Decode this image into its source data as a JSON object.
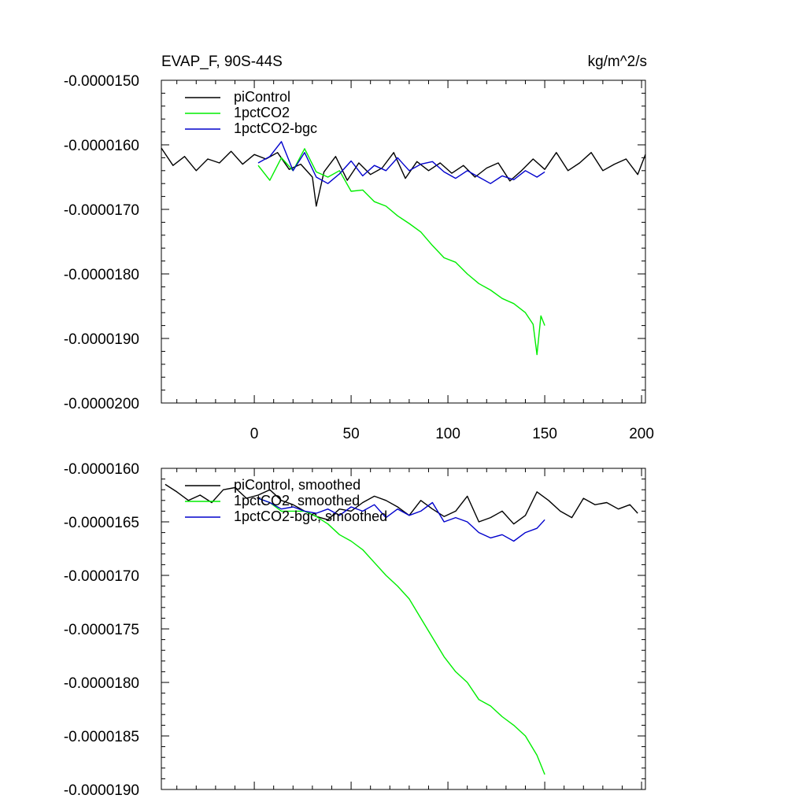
{
  "chart_data": [
    {
      "type": "line",
      "title_left": "EVAP_F, 90S-44S",
      "title_right": "kg/m^2/s",
      "xlabel": "",
      "ylabel": "",
      "xlim": [
        -48,
        202
      ],
      "ylim": [
        -2e-05,
        -1.5e-05
      ],
      "xticks": [
        0,
        50,
        100,
        150,
        200
      ],
      "xtick_labels": [
        "0",
        "50",
        "100",
        "150",
        "200"
      ],
      "yticks": [
        -1.5e-05,
        -1.6e-05,
        -1.7e-05,
        -1.8e-05,
        -1.9e-05,
        -2e-05
      ],
      "ytick_labels": [
        "-0.0000150",
        "-0.0000160",
        "-0.0000170",
        "-0.0000180",
        "-0.0000190",
        "-0.0000200"
      ],
      "legend": "top-left",
      "series": [
        {
          "name": "piControl",
          "color": "#000000",
          "x": [
            -48,
            -42,
            -36,
            -30,
            -24,
            -18,
            -12,
            -6,
            0,
            6,
            12,
            18,
            24,
            30,
            32,
            36,
            42,
            48,
            54,
            60,
            66,
            72,
            78,
            84,
            90,
            96,
            102,
            108,
            114,
            120,
            126,
            132,
            138,
            144,
            150,
            156,
            162,
            168,
            174,
            180,
            186,
            192,
            198,
            202
          ],
          "values": [
            -1.605e-05,
            -1.632e-05,
            -1.618e-05,
            -1.64e-05,
            -1.622e-05,
            -1.628e-05,
            -1.61e-05,
            -1.63e-05,
            -1.615e-05,
            -1.622e-05,
            -1.612e-05,
            -1.638e-05,
            -1.63e-05,
            -1.65e-05,
            -1.695e-05,
            -1.642e-05,
            -1.618e-05,
            -1.655e-05,
            -1.628e-05,
            -1.646e-05,
            -1.636e-05,
            -1.612e-05,
            -1.652e-05,
            -1.626e-05,
            -1.64e-05,
            -1.628e-05,
            -1.644e-05,
            -1.632e-05,
            -1.65e-05,
            -1.636e-05,
            -1.628e-05,
            -1.656e-05,
            -1.64e-05,
            -1.622e-05,
            -1.638e-05,
            -1.612e-05,
            -1.64e-05,
            -1.628e-05,
            -1.612e-05,
            -1.64e-05,
            -1.63e-05,
            -1.622e-05,
            -1.646e-05,
            -1.615e-05
          ]
        },
        {
          "name": "1pctCO2",
          "color": "#00ee00",
          "x": [
            2,
            8,
            14,
            20,
            26,
            32,
            38,
            44,
            50,
            56,
            62,
            68,
            74,
            80,
            86,
            92,
            98,
            104,
            110,
            116,
            122,
            128,
            134,
            140,
            144,
            146,
            148,
            150
          ],
          "values": [
            -1.632e-05,
            -1.655e-05,
            -1.62e-05,
            -1.64e-05,
            -1.606e-05,
            -1.642e-05,
            -1.65e-05,
            -1.64e-05,
            -1.672e-05,
            -1.67e-05,
            -1.688e-05,
            -1.695e-05,
            -1.71e-05,
            -1.722e-05,
            -1.735e-05,
            -1.756e-05,
            -1.775e-05,
            -1.782e-05,
            -1.8e-05,
            -1.815e-05,
            -1.825e-05,
            -1.838e-05,
            -1.846e-05,
            -1.86e-05,
            -1.878e-05,
            -1.925e-05,
            -1.865e-05,
            -1.88e-05
          ]
        },
        {
          "name": "1pctCO2-bgc",
          "color": "#0000cc",
          "x": [
            2,
            8,
            14,
            20,
            26,
            32,
            38,
            44,
            50,
            56,
            62,
            68,
            74,
            80,
            86,
            92,
            98,
            104,
            110,
            116,
            122,
            128,
            134,
            140,
            146,
            150
          ],
          "values": [
            -1.628e-05,
            -1.618e-05,
            -1.595e-05,
            -1.64e-05,
            -1.612e-05,
            -1.65e-05,
            -1.66e-05,
            -1.645e-05,
            -1.625e-05,
            -1.648e-05,
            -1.632e-05,
            -1.64e-05,
            -1.62e-05,
            -1.64e-05,
            -1.63e-05,
            -1.626e-05,
            -1.642e-05,
            -1.652e-05,
            -1.64e-05,
            -1.65e-05,
            -1.66e-05,
            -1.648e-05,
            -1.654e-05,
            -1.64e-05,
            -1.65e-05,
            -1.642e-05
          ]
        }
      ]
    },
    {
      "type": "line",
      "title_left": "",
      "title_right": "",
      "xlabel": "",
      "ylabel": "",
      "xlim": [
        -48,
        202
      ],
      "ylim": [
        -1.9e-05,
        -1.6e-05
      ],
      "xticks": [
        0,
        50,
        100,
        150,
        200
      ],
      "xtick_labels": [],
      "yticks": [
        -1.6e-05,
        -1.65e-05,
        -1.7e-05,
        -1.75e-05,
        -1.8e-05,
        -1.85e-05,
        -1.9e-05
      ],
      "ytick_labels": [
        "-0.0000160",
        "-0.0000165",
        "-0.0000170",
        "-0.0000175",
        "-0.0000180",
        "-0.0000185",
        "-0.0000190"
      ],
      "legend": "top-left",
      "series": [
        {
          "name": "piControl, smoothed",
          "color": "#000000",
          "x": [
            -46,
            -40,
            -34,
            -28,
            -22,
            -16,
            -10,
            -4,
            2,
            8,
            14,
            20,
            26,
            32,
            38,
            44,
            50,
            56,
            62,
            68,
            74,
            80,
            86,
            92,
            98,
            104,
            110,
            116,
            122,
            128,
            134,
            140,
            146,
            152,
            158,
            164,
            170,
            176,
            182,
            188,
            194,
            198
          ],
          "values": [
            -1.615e-05,
            -1.622e-05,
            -1.63e-05,
            -1.625e-05,
            -1.632e-05,
            -1.62e-05,
            -1.618e-05,
            -1.628e-05,
            -1.625e-05,
            -1.62e-05,
            -1.63e-05,
            -1.634e-05,
            -1.64e-05,
            -1.645e-05,
            -1.648e-05,
            -1.638e-05,
            -1.64e-05,
            -1.632e-05,
            -1.626e-05,
            -1.63e-05,
            -1.636e-05,
            -1.644e-05,
            -1.63e-05,
            -1.638e-05,
            -1.645e-05,
            -1.64e-05,
            -1.626e-05,
            -1.65e-05,
            -1.646e-05,
            -1.64e-05,
            -1.652e-05,
            -1.644e-05,
            -1.622e-05,
            -1.63e-05,
            -1.64e-05,
            -1.646e-05,
            -1.628e-05,
            -1.634e-05,
            -1.632e-05,
            -1.638e-05,
            -1.634e-05,
            -1.642e-05
          ]
        },
        {
          "name": "1pctCO2, smoothed",
          "color": "#00ee00",
          "x": [
            2,
            8,
            14,
            20,
            26,
            32,
            38,
            44,
            50,
            56,
            62,
            68,
            74,
            80,
            86,
            92,
            98,
            104,
            110,
            116,
            122,
            128,
            134,
            140,
            146,
            150
          ],
          "values": [
            -1.628e-05,
            -1.632e-05,
            -1.64e-05,
            -1.64e-05,
            -1.64e-05,
            -1.645e-05,
            -1.652e-05,
            -1.662e-05,
            -1.668e-05,
            -1.676e-05,
            -1.688e-05,
            -1.7e-05,
            -1.71e-05,
            -1.722e-05,
            -1.74e-05,
            -1.758e-05,
            -1.776e-05,
            -1.79e-05,
            -1.8e-05,
            -1.816e-05,
            -1.822e-05,
            -1.832e-05,
            -1.84e-05,
            -1.85e-05,
            -1.868e-05,
            -1.886e-05
          ]
        },
        {
          "name": "1pctCO2-bgc, smoothed",
          "color": "#0000cc",
          "x": [
            2,
            8,
            14,
            20,
            26,
            32,
            38,
            44,
            50,
            56,
            62,
            68,
            74,
            80,
            86,
            92,
            98,
            104,
            110,
            116,
            122,
            128,
            134,
            140,
            146,
            150
          ],
          "values": [
            -1.628e-05,
            -1.632e-05,
            -1.638e-05,
            -1.636e-05,
            -1.64e-05,
            -1.642e-05,
            -1.638e-05,
            -1.644e-05,
            -1.636e-05,
            -1.64e-05,
            -1.634e-05,
            -1.646e-05,
            -1.638e-05,
            -1.644e-05,
            -1.64e-05,
            -1.632e-05,
            -1.65e-05,
            -1.646e-05,
            -1.65e-05,
            -1.66e-05,
            -1.665e-05,
            -1.662e-05,
            -1.668e-05,
            -1.66e-05,
            -1.656e-05,
            -1.648e-05
          ]
        }
      ]
    }
  ]
}
